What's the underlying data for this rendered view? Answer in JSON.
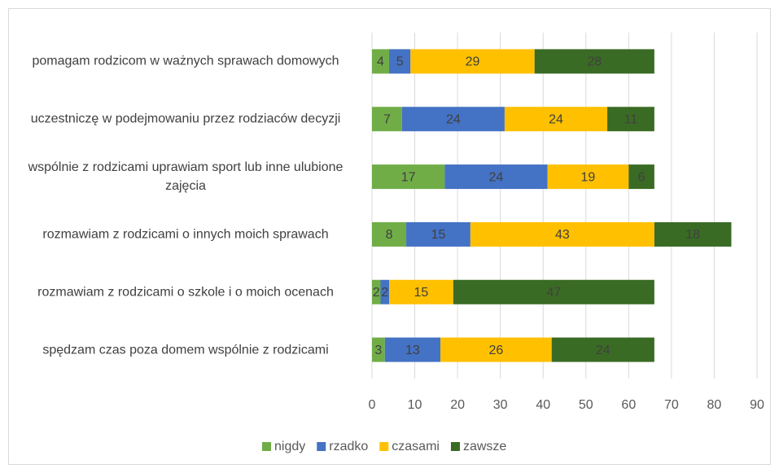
{
  "chart_data": {
    "type": "stacked_bar_horizontal",
    "categories": [
      "pomagam rodzicom w ważnych sprawach domowych",
      "uczestniczę w podejmowaniu przez rodziaców decyzji",
      "wspólnie z rodzicami uprawiam sport lub inne ulubione zajęcia",
      "rozmawiam z rodzicami o innych moich sprawach",
      "rozmawiam z rodzicami o szkole i o moich ocenach",
      "spędzam czas poza domem wspólnie z rodzicami"
    ],
    "series": [
      {
        "name": "nigdy",
        "color": "#70ad47",
        "values": [
          4,
          7,
          17,
          8,
          2,
          3
        ]
      },
      {
        "name": "rzadko",
        "color": "#4472c4",
        "values": [
          5,
          24,
          24,
          15,
          2,
          13
        ]
      },
      {
        "name": "czasami",
        "color": "#ffc000",
        "values": [
          29,
          24,
          19,
          43,
          15,
          26
        ]
      },
      {
        "name": "zawsze",
        "color": "#3a6b24",
        "values": [
          28,
          11,
          6,
          18,
          47,
          24
        ]
      }
    ],
    "xlim": [
      0,
      90
    ],
    "xticks": [
      0,
      10,
      20,
      30,
      40,
      50,
      60,
      70,
      80,
      90
    ],
    "grid": true,
    "legend": "bottom"
  }
}
